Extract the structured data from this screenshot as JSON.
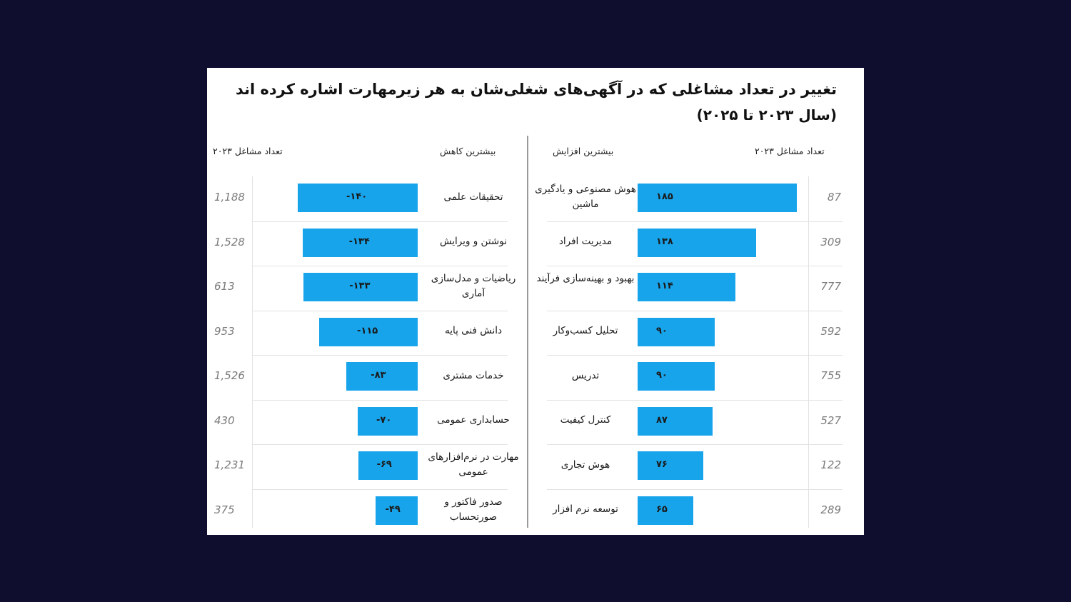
{
  "title": "تغییر در تعداد مشاغلی که در آگهی‌های شغلی‌شان به هر زیرمهارت اشاره کرده اند",
  "subtitle": "(سال ۲۰۲۳ تا ۲۰۲۵)",
  "headers": {
    "left_count": "تعداد مشاغل ۲۰۲۳",
    "decrease": "بیشترین کاهش",
    "increase": "بیشترین افزایش",
    "right_count": "تعداد مشاغل ۲۰۲۳"
  },
  "colors": {
    "bar": "#17a4eb",
    "background": "#0f0e2f",
    "card": "#ffffff"
  },
  "chart_data": [
    {
      "type": "bar",
      "title": "بیشترین افزایش",
      "orientation": "horizontal",
      "categories": [
        "هوش مصنوعی و یادگیری ماشین",
        "مدیریت افراد",
        "بهبود و بهینه‌سازی فرآیند",
        "تحلیل کسب‌وکار",
        "تدریس",
        "کنترل کیفیت",
        "هوش تجاری",
        "توسعه نرم افزار"
      ],
      "values": [
        185,
        138,
        114,
        90,
        90,
        87,
        76,
        65
      ],
      "value_labels": [
        "۱۸۵",
        "۱۳۸",
        "۱۱۴",
        "۹۰",
        "۹۰",
        "۸۷",
        "۷۶",
        "۶۵"
      ],
      "counts_2023": [
        "87",
        "309",
        "777",
        "592",
        "755",
        "527",
        "122",
        "289"
      ],
      "xlim": [
        0,
        185
      ]
    },
    {
      "type": "bar",
      "title": "بیشترین کاهش",
      "orientation": "horizontal",
      "categories": [
        "تحقیقات علمی",
        "نوشتن و ویرایش",
        "ریاضیات و مدل‌سازی آماری",
        "دانش فنی پایه",
        "خدمات مشتری",
        "حسابداری عمومی",
        "مهارت در نرم‌افزارهای عمومی",
        "صدور فاکتور و صورتحساب"
      ],
      "values": [
        -140,
        -134,
        -133,
        -115,
        -83,
        -70,
        -69,
        -49
      ],
      "value_labels": [
        "-۱۴۰",
        "-۱۳۴",
        "-۱۳۳",
        "-۱۱۵",
        "-۸۳",
        "-۷۰",
        "-۶۹",
        "-۴۹"
      ],
      "counts_2023": [
        "1,188",
        "1,528",
        "613",
        "953",
        "1,526",
        "430",
        "1,231",
        "375"
      ],
      "xlim": [
        -140,
        0
      ]
    }
  ]
}
